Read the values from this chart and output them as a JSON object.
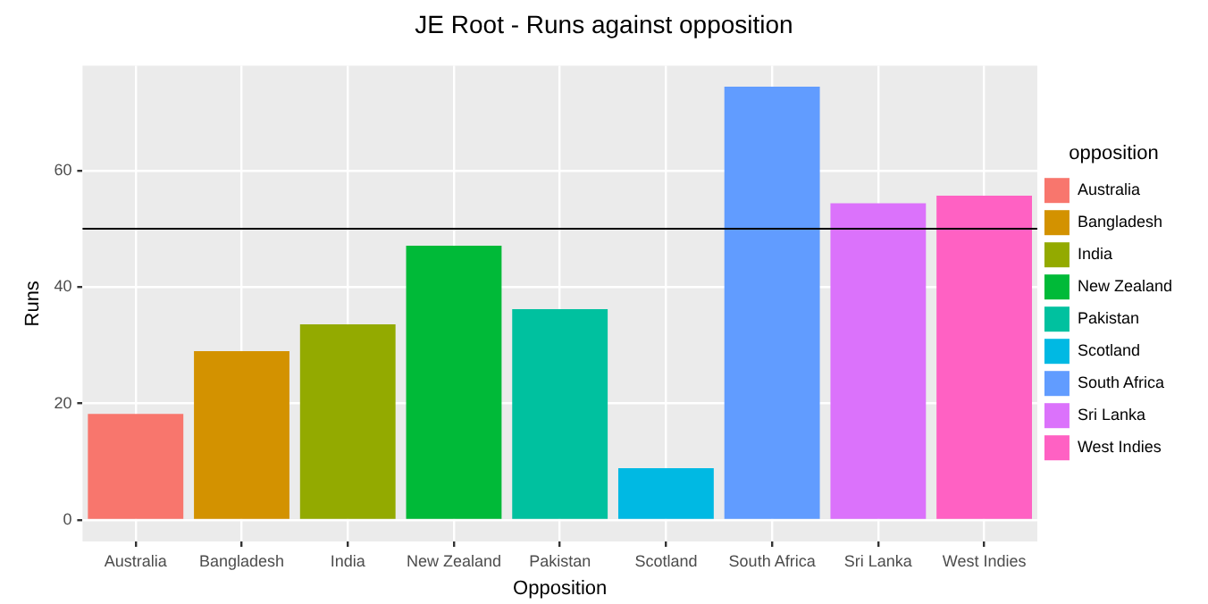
{
  "chart_data": {
    "type": "bar",
    "title": "JE Root - Runs against opposition",
    "xlabel": "Opposition",
    "ylabel": "Runs",
    "legend_title": "opposition",
    "legend": "right",
    "categories": [
      "Australia",
      "Bangladesh",
      "India",
      "New Zealand",
      "Pakistan",
      "Scotland",
      "South Africa",
      "Sri Lanka",
      "West Indies"
    ],
    "series": [
      {
        "name": "Australia",
        "color": "#f8766d",
        "values": [
          18.2,
          null,
          null,
          null,
          null,
          null,
          null,
          null,
          null
        ]
      },
      {
        "name": "Bangladesh",
        "color": "#d39200",
        "values": [
          null,
          29.0,
          null,
          null,
          null,
          null,
          null,
          null,
          null
        ]
      },
      {
        "name": "India",
        "color": "#93aa00",
        "values": [
          null,
          null,
          33.6,
          null,
          null,
          null,
          null,
          null,
          null
        ]
      },
      {
        "name": "New Zealand",
        "color": "#00ba38",
        "values": [
          null,
          null,
          null,
          47.1,
          null,
          null,
          null,
          null,
          null
        ]
      },
      {
        "name": "Pakistan",
        "color": "#00c19f",
        "values": [
          null,
          null,
          null,
          null,
          36.2,
          null,
          null,
          null,
          null
        ]
      },
      {
        "name": "Scotland",
        "color": "#00b9e3",
        "values": [
          null,
          null,
          null,
          null,
          null,
          8.9,
          null,
          null,
          null
        ]
      },
      {
        "name": "South Africa",
        "color": "#619cff",
        "values": [
          null,
          null,
          null,
          null,
          null,
          null,
          74.4,
          null,
          null
        ]
      },
      {
        "name": "Sri Lanka",
        "color": "#db72fb",
        "values": [
          null,
          null,
          null,
          null,
          null,
          null,
          null,
          54.4,
          null
        ]
      },
      {
        "name": "West Indies",
        "color": "#ff61c3",
        "values": [
          null,
          null,
          null,
          null,
          null,
          null,
          null,
          null,
          55.7
        ]
      }
    ],
    "ylim": [
      -3.7,
      78
    ],
    "yticks": [
      0,
      20,
      40,
      60
    ],
    "grid": true,
    "ref_lines": [
      {
        "axis": "y",
        "value": 50,
        "color": "#000000"
      }
    ]
  }
}
